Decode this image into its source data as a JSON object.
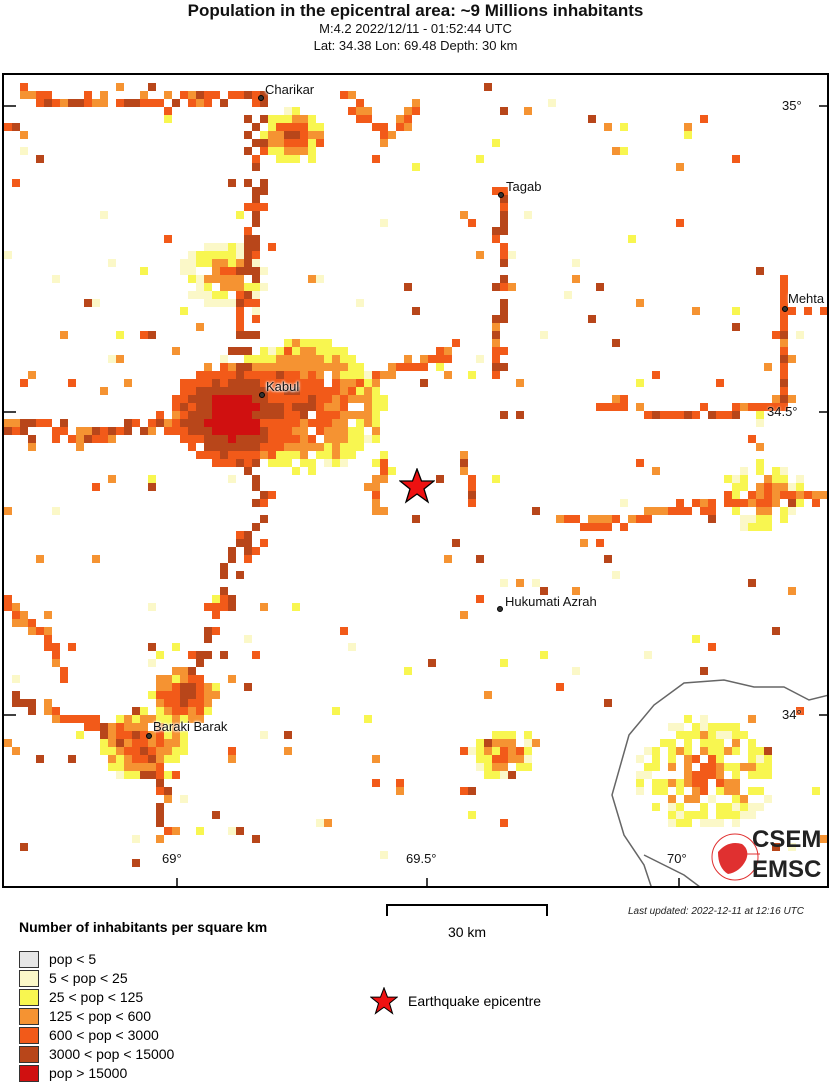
{
  "header": {
    "title": "Population in the epicentral area: ~9 Millions inhabitants",
    "event": "M:4.2 2022/12/11 - 01:52:44 UTC",
    "location": "Lat: 34.38 Lon: 69.48 Depth: 30 km"
  },
  "map": {
    "lon_ticks": [
      "69°",
      "69.5°",
      "70°"
    ],
    "lat_ticks": [
      "35°",
      "34.5°",
      "34°"
    ],
    "cities": [
      {
        "name": "Charikar"
      },
      {
        "name": "Tagab"
      },
      {
        "name": "Mehta"
      },
      {
        "name": "Kabul"
      },
      {
        "name": "Hukumati Azrah"
      },
      {
        "name": "Baraki Barak"
      }
    ],
    "epicentre": {
      "lat": 34.38,
      "lon": 69.48,
      "icon": "red-star-icon",
      "color": "#ee1111"
    },
    "logo": {
      "text_top": "CSEM",
      "text_bottom": "EMSC",
      "color": "#e03030"
    }
  },
  "scale_bar": {
    "label": "30 km"
  },
  "last_updated": "Last updated: 2022-12-11 at 12:16 UTC",
  "legend": {
    "title": "Number of inhabitants per square km",
    "items": [
      {
        "label": "pop < 5",
        "color": "#e6e6e6"
      },
      {
        "label": "5 < pop < 25",
        "color": "#fbf8c8"
      },
      {
        "label": "25 < pop < 125",
        "color": "#f8f650"
      },
      {
        "label": "125 < pop < 600",
        "color": "#f59332"
      },
      {
        "label": "600 < pop < 3000",
        "color": "#f25a19"
      },
      {
        "label": "3000 < pop < 15000",
        "color": "#b8461a"
      },
      {
        "label": "pop > 15000",
        "color": "#d01010"
      }
    ],
    "epicentre_label": "Earthquake epicentre"
  }
}
